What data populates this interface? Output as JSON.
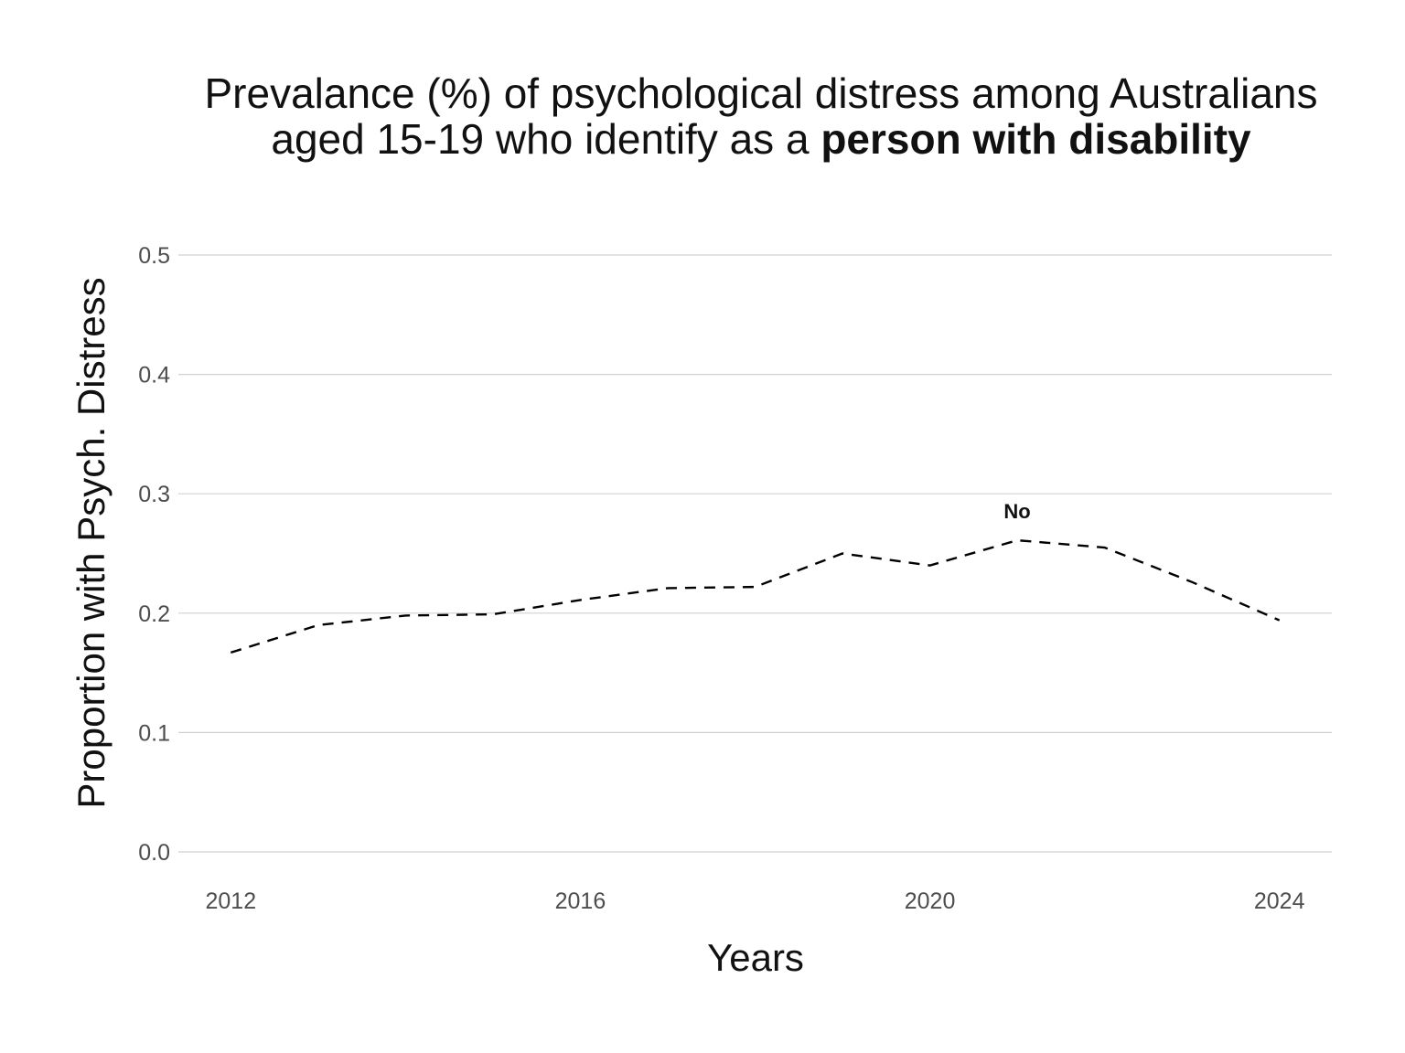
{
  "chart_data": {
    "type": "line",
    "title_line1": "Prevalance (%) of psychological distress among Australians",
    "title_line2_regular": "aged 15-19 who identify as a ",
    "title_line2_bold": "person with disability",
    "xlabel": "Years",
    "ylabel": "Proportion with Psych. Distress",
    "xlim": [
      2011.4,
      2024.6
    ],
    "ylim": [
      0,
      0.5
    ],
    "x_ticks": [
      2012,
      2016,
      2020,
      2024
    ],
    "x_tick_labels": [
      "2012",
      "2016",
      "2020",
      "2024"
    ],
    "y_ticks": [
      0,
      0.1,
      0.2,
      0.3,
      0.4,
      0.5
    ],
    "y_tick_labels": [
      "0.0",
      "0.1",
      "0.2",
      "0.3",
      "0.4",
      "0.5"
    ],
    "grid": "horizontal",
    "series": [
      {
        "name": "No",
        "line_style": "dashed",
        "color": "#000000",
        "x": [
          2012,
          2013,
          2014,
          2015,
          2016,
          2017,
          2018,
          2019,
          2020,
          2021,
          2022,
          2023,
          2024
        ],
        "values": [
          0.167,
          0.19,
          0.198,
          0.199,
          0.211,
          0.221,
          0.222,
          0.25,
          0.24,
          0.261,
          0.255,
          0.226,
          0.194
        ],
        "label": "No",
        "label_at_x": 2021
      }
    ]
  }
}
